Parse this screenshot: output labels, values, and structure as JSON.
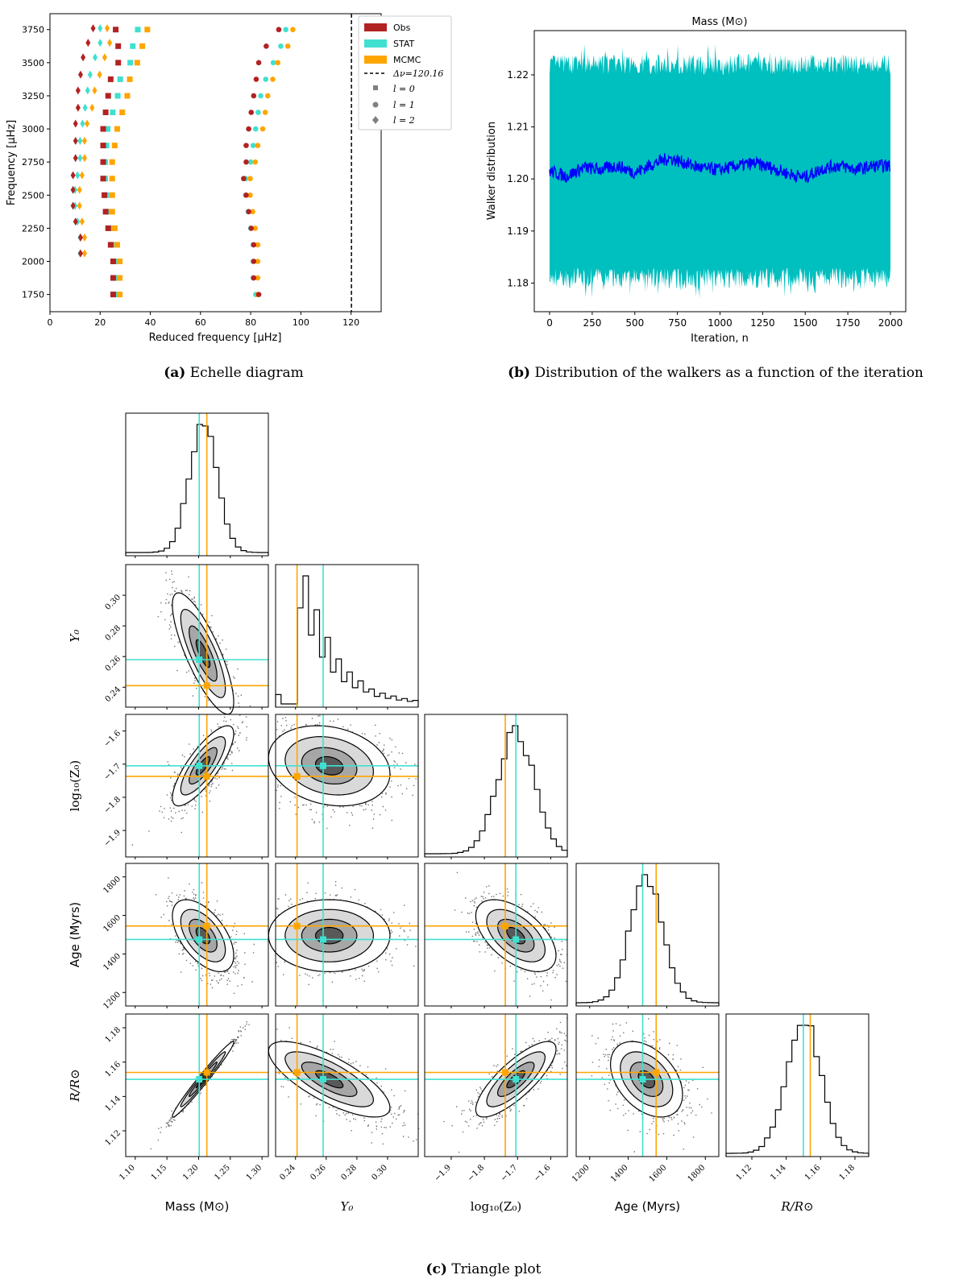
{
  "colors": {
    "obs": "#b22222",
    "stat": "#40e0d0",
    "mcmc": "#ffa500",
    "walker_band": "#00bfbf",
    "walker_mean": "#0000ff",
    "hist": "#000000",
    "contour_fill": "#3a3a3a"
  },
  "captions": {
    "a_tag": "(a)",
    "a_text": "Echelle diagram",
    "b_tag": "(b)",
    "b_text": "Distribution of the walkers as a function of the iteration",
    "c_tag": "(c)",
    "c_text": "Triangle plot"
  },
  "chart_data": [
    {
      "id": "echelle",
      "type": "scatter",
      "xlabel": "Reduced frequency [μHz]",
      "ylabel": "Frequency [μHz]",
      "xlim": [
        0,
        132
      ],
      "ylim": [
        1620,
        3870
      ],
      "xticks": [
        0,
        20,
        40,
        60,
        80,
        100,
        120
      ],
      "yticks": [
        1750,
        2000,
        2250,
        2500,
        2750,
        3000,
        3250,
        3500,
        3750
      ],
      "delta_nu_line": 120.16,
      "legend": [
        "Obs",
        "STAT",
        "MCMC",
        "Δν=120.16",
        "l = 0",
        "l = 1",
        "l = 2"
      ],
      "legend_position": "top-right",
      "frequencies": [
        1750,
        1875,
        2000,
        2125,
        2250,
        2375,
        2500,
        2625,
        2750,
        2875,
        3000,
        3125,
        3250,
        3375,
        3500,
        3625,
        3750
      ],
      "l0": {
        "obs": [
          26,
          26,
          26,
          25,
          24,
          23,
          22.5,
          22,
          22,
          22,
          22,
          23,
          24,
          25,
          28,
          28,
          27
        ],
        "stat": [
          26,
          26,
          26,
          25,
          24,
          23,
          22.5,
          22,
          22,
          22.5,
          23,
          25,
          27,
          28,
          32,
          33,
          35
        ],
        "mcmc": [
          27,
          27,
          27,
          26,
          25,
          24,
          24,
          24,
          24,
          25,
          26,
          28,
          30,
          31,
          34,
          36,
          38
        ]
      },
      "l1": {
        "obs": [
          84,
          82,
          82,
          82,
          81,
          80,
          79,
          78,
          79,
          79,
          80,
          81,
          82,
          83,
          84,
          87,
          92
        ],
        "stat": [
          82,
          81,
          81,
          81,
          80,
          79,
          78,
          78,
          80,
          81,
          82,
          83,
          84,
          86,
          89,
          92,
          94
        ],
        "mcmc": [
          82,
          82,
          82,
          82,
          81,
          80,
          79,
          79,
          81,
          82,
          84,
          85,
          86,
          88,
          90,
          94,
          96
        ]
      },
      "l2": {
        "freqs": [
          2060,
          2180,
          2300,
          2420,
          2540,
          2650,
          2780,
          2910,
          3040,
          3160,
          3290,
          3410,
          3540,
          3650,
          3760
        ],
        "obs": [
          13,
          13,
          11,
          10,
          10,
          10,
          11,
          11,
          11,
          12,
          12,
          13,
          14,
          16,
          18
        ],
        "stat": [
          12,
          12,
          11,
          10,
          10,
          11,
          12,
          12,
          13,
          14,
          15,
          16,
          18,
          20,
          20
        ],
        "mcmc": [
          13,
          13,
          12,
          11,
          11,
          12,
          13,
          13,
          14,
          16,
          17,
          19,
          21,
          23,
          22
        ]
      }
    },
    {
      "id": "walkers",
      "type": "area",
      "title": "Mass (M⊙)",
      "xlabel": "Iteration, n",
      "ylabel": "Walker distribution",
      "xlim": [
        -90,
        2090
      ],
      "ylim": [
        1.1745,
        1.2285
      ],
      "xticks": [
        0,
        250,
        500,
        750,
        1000,
        1250,
        1500,
        1750,
        2000
      ],
      "yticks": [
        1.18,
        1.19,
        1.2,
        1.21,
        1.22
      ],
      "n_iterations": 2000,
      "band_lower": 1.181,
      "band_upper": 1.222,
      "mean_line": {
        "iterations": [
          0,
          100,
          200,
          300,
          400,
          500,
          600,
          700,
          800,
          900,
          1000,
          1100,
          1200,
          1300,
          1400,
          1500,
          1600,
          1700,
          1800,
          1900,
          2000
        ],
        "values": [
          1.2015,
          1.2005,
          1.2022,
          1.2018,
          1.2025,
          1.2012,
          1.2028,
          1.204,
          1.203,
          1.202,
          1.2018,
          1.2025,
          1.203,
          1.2022,
          1.201,
          1.2003,
          1.202,
          1.2026,
          1.2018,
          1.2025,
          1.2025
        ]
      }
    },
    {
      "id": "corner",
      "type": "scatter",
      "parameters": [
        {
          "key": "mass",
          "label": "Mass (M⊙)",
          "range": [
            1.085,
            1.31
          ],
          "ticks": [
            1.1,
            1.15,
            1.2,
            1.25,
            1.3
          ],
          "mean": 1.207,
          "sd": 0.022,
          "stat": 1.201,
          "mcmc": 1.213
        },
        {
          "key": "y0",
          "label": "Y0",
          "range": [
            0.227,
            0.32
          ],
          "ticks": [
            0.24,
            0.26,
            0.28,
            0.3
          ],
          "mean": 0.262,
          "sd": 0.018,
          "stat": 0.258,
          "mcmc": 0.241
        },
        {
          "key": "logz",
          "label": "log10(Z0)",
          "range": [
            -1.98,
            -1.55
          ],
          "ticks": [
            -1.9,
            -1.8,
            -1.7,
            -1.6
          ],
          "mean": -1.705,
          "sd": 0.055,
          "stat": -1.705,
          "mcmc": -1.737
        },
        {
          "key": "age",
          "label": "Age (Myrs)",
          "range": [
            1130,
            1870
          ],
          "ticks": [
            1200,
            1400,
            1600,
            1800
          ],
          "mean": 1495,
          "sd": 85,
          "stat": 1475,
          "mcmc": 1545
        },
        {
          "key": "radius",
          "label": "R/R⊙",
          "range": [
            1.105,
            1.188
          ],
          "ticks": [
            1.12,
            1.14,
            1.16,
            1.18
          ],
          "mean": 1.15,
          "sd": 0.01,
          "stat": 1.15,
          "mcmc": 1.154
        }
      ],
      "correlations": {
        "y0|mass": -0.8,
        "logz|mass": 0.8,
        "logz|y0": -0.2,
        "age|mass": -0.55,
        "age|y0": 0.0,
        "age|logz": -0.55,
        "radius|mass": 0.99,
        "radius|y0": -0.75,
        "radius|logz": 0.8,
        "radius|age": -0.4
      }
    }
  ]
}
